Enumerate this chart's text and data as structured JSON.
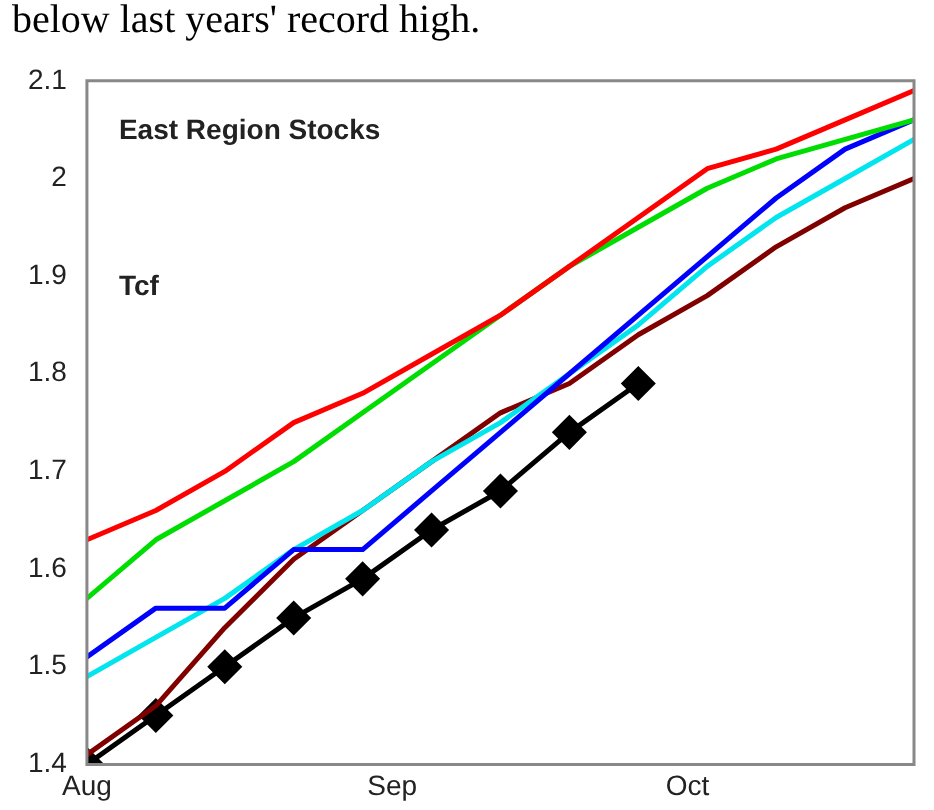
{
  "chart_data": {
    "type": "line",
    "annotations": [
      "below last years' record high.",
      "East Region Stocks",
      "Tcf"
    ],
    "x": [
      "--08-01",
      "--08-08",
      "--08-15",
      "--08-22",
      "--08-29",
      "--09-05",
      "--09-12",
      "--09-19",
      "--09-26",
      "--10-03",
      "--10-10",
      "--10-17",
      "--10-24"
    ],
    "xlim": [
      "--08-01",
      "--10-24"
    ],
    "xticks": [
      {
        "value": "--08-01",
        "label": "Aug"
      },
      {
        "value": "--09-01",
        "label": "Sep"
      },
      {
        "value": "--10-01",
        "label": "Oct"
      }
    ],
    "ylim": [
      1.4,
      2.1
    ],
    "yticks": [
      1.4,
      1.5,
      1.6,
      1.7,
      1.8,
      1.9,
      2.0,
      2.1
    ],
    "grid": false,
    "legend": false,
    "series": [
      {
        "color": "#ff0000",
        "marker": "none",
        "values": [
          1.63,
          1.66,
          1.7,
          1.75,
          1.78,
          1.82,
          1.86,
          1.91,
          1.96,
          2.01,
          2.03,
          2.06,
          2.09
        ]
      },
      {
        "color": "#00dd00",
        "marker": "none",
        "values": [
          1.57,
          1.63,
          1.67,
          1.71,
          1.76,
          1.81,
          1.86,
          1.91,
          1.95,
          1.99,
          2.02,
          2.04,
          2.06
        ]
      },
      {
        "color": "#0000ff",
        "marker": "none",
        "values": [
          1.51,
          1.56,
          1.56,
          1.62,
          1.62,
          1.68,
          1.74,
          1.8,
          1.86,
          1.92,
          1.98,
          2.03,
          2.06
        ]
      },
      {
        "color": "#00e5ee",
        "marker": "none",
        "values": [
          1.49,
          1.53,
          1.57,
          1.62,
          1.66,
          1.71,
          1.75,
          1.8,
          1.85,
          1.91,
          1.96,
          2.0,
          2.04
        ]
      },
      {
        "color": "#800000",
        "marker": "none",
        "values": [
          1.41,
          1.46,
          1.54,
          1.61,
          1.66,
          1.71,
          1.76,
          1.79,
          1.84,
          1.88,
          1.93,
          1.97,
          2.0
        ]
      },
      {
        "color": "#000000",
        "marker": "diamond",
        "values": [
          1.4,
          1.45,
          1.5,
          1.55,
          1.59,
          1.64,
          1.68,
          1.74,
          1.79,
          null,
          null,
          null,
          null
        ]
      }
    ]
  }
}
